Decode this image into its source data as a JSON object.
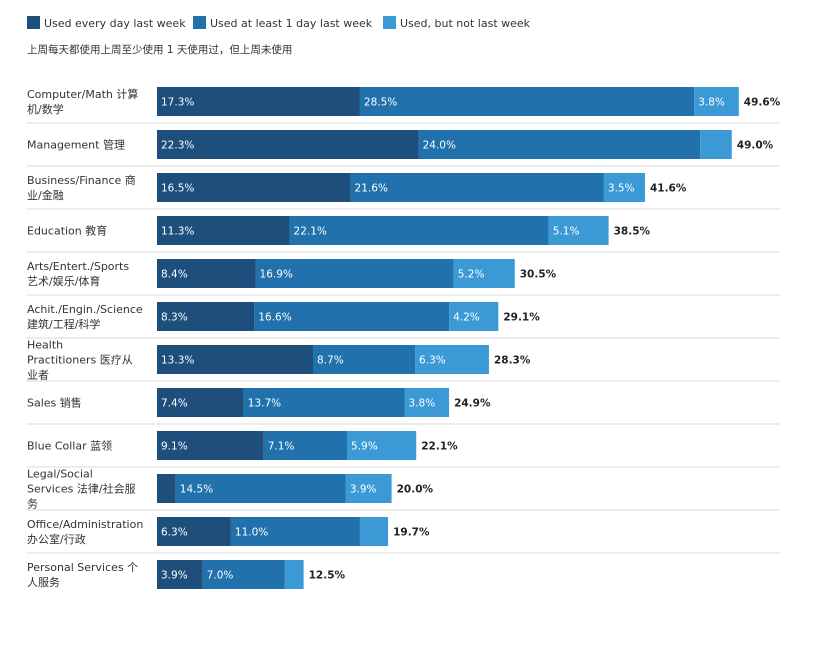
{
  "subtitle": "上周每天都使用上周至少使用 1 天使用过，但上周未使用",
  "chart_data": {
    "type": "bar",
    "orientation": "horizontal",
    "stacked": true,
    "title": "",
    "xlabel": "",
    "ylabel": "",
    "legend_position": "top-left",
    "grid": false,
    "series": [
      {
        "name": "Used every day last week",
        "color": "#1d4e7c",
        "values": [
          17.3,
          22.3,
          16.5,
          11.3,
          8.4,
          8.3,
          13.3,
          7.4,
          9.1,
          1.6,
          6.3,
          3.9
        ]
      },
      {
        "name": "Used at least 1 day last week",
        "color": "#2171ad",
        "values": [
          28.5,
          24.0,
          21.6,
          22.1,
          16.9,
          16.6,
          8.7,
          13.7,
          7.1,
          14.5,
          11.0,
          7.0
        ]
      },
      {
        "name": "Used, but not last week",
        "color": "#3b9ad6",
        "values": [
          3.8,
          2.7,
          3.5,
          5.1,
          5.2,
          4.2,
          6.3,
          3.8,
          5.9,
          3.9,
          2.4,
          1.6
        ]
      }
    ],
    "segment_labels": [
      [
        "17.3%",
        "28.5%",
        "3.8%"
      ],
      [
        "22.3%",
        "24.0%",
        ""
      ],
      [
        "16.5%",
        "21.6%",
        "3.5%"
      ],
      [
        "11.3%",
        "22.1%",
        "5.1%"
      ],
      [
        "8.4%",
        "16.9%",
        "5.2%"
      ],
      [
        "8.3%",
        "16.6%",
        "4.2%"
      ],
      [
        "13.3%",
        "8.7%",
        "6.3%"
      ],
      [
        "7.4%",
        "13.7%",
        "3.8%"
      ],
      [
        "9.1%",
        "7.1%",
        "5.9%"
      ],
      [
        "",
        "14.5%",
        "3.9%"
      ],
      [
        "6.3%",
        "11.0%",
        ""
      ],
      [
        "3.9%",
        "7.0%",
        ""
      ]
    ],
    "categories": [
      [
        "Computer/Math 计算",
        "机/数学"
      ],
      [
        "Management 管理"
      ],
      [
        "Business/Finance 商",
        "业/金融"
      ],
      [
        "Education 教育"
      ],
      [
        "Arts/Entert./Sports",
        "艺术/娱乐/体育"
      ],
      [
        "Achit./Engin./Science",
        "建筑/工程/科学"
      ],
      [
        "Health",
        "Practitioners 医疗从",
        "业者"
      ],
      [
        "Sales 销售"
      ],
      [
        "Blue Collar 蓝领"
      ],
      [
        "Legal/Social",
        "Services 法律/社会服",
        "务"
      ],
      [
        "Office/Administration",
        "办公室/行政"
      ],
      [
        "Personal Services 个",
        "人服务"
      ]
    ],
    "totals": [
      49.6,
      49.0,
      41.6,
      38.5,
      30.5,
      29.1,
      28.3,
      24.9,
      22.1,
      20.0,
      19.7,
      12.5
    ],
    "total_labels": [
      "49.6%",
      "49.0%",
      "41.6%",
      "38.5%",
      "30.5%",
      "29.1%",
      "28.3%",
      "24.9%",
      "22.1%",
      "20.0%",
      "19.7%",
      "12.5%"
    ],
    "xlim": [
      0,
      50
    ]
  }
}
